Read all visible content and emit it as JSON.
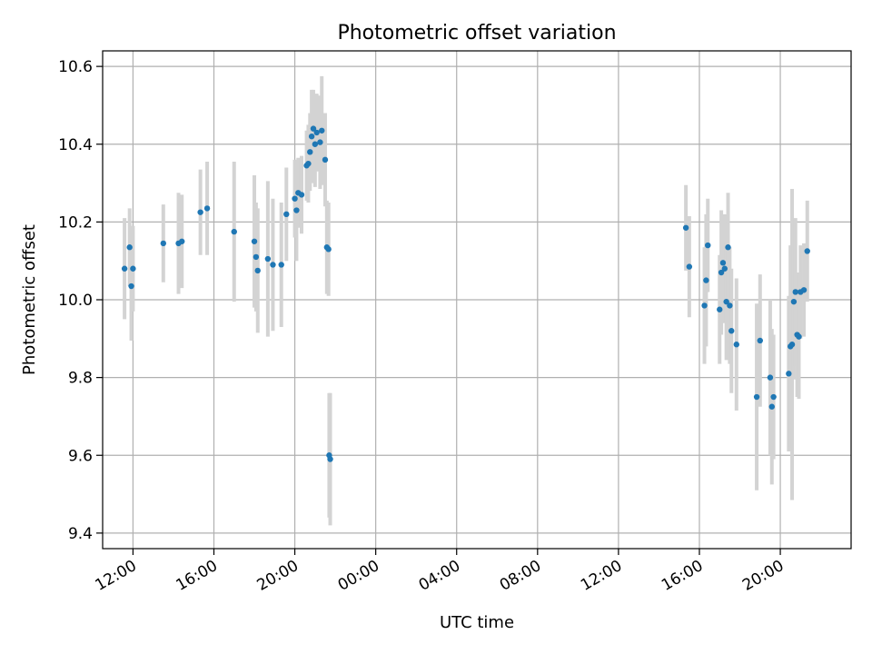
{
  "chart_data": {
    "type": "scatter",
    "title": "Photometric offset variation",
    "xlabel": "UTC time",
    "ylabel": "Photometric offset",
    "xlim": [
      "10:30 (day 1)",
      "23:30 (day 2)"
    ],
    "ylim": [
      9.36,
      10.64
    ],
    "grid": true,
    "xticks": [
      "12:00",
      "16:00",
      "20:00",
      "00:00",
      "04:00",
      "08:00",
      "12:00",
      "16:00",
      "20:00"
    ],
    "yticks": [
      "9.4",
      "9.6",
      "9.8",
      "10.0",
      "10.2",
      "10.4",
      "10.6"
    ],
    "colors": {
      "points": "#1f77b4",
      "errorbars": "#d3d3d3",
      "grid": "#b0b0b0"
    },
    "points": [
      {
        "t": "11:35",
        "y": 10.08,
        "err": 0.13
      },
      {
        "t": "11:50",
        "y": 10.135,
        "err": 0.1
      },
      {
        "t": "11:55",
        "y": 10.035,
        "err": 0.14
      },
      {
        "t": "12:00",
        "y": 10.08,
        "err": 0.11
      },
      {
        "t": "13:30",
        "y": 10.145,
        "err": 0.1
      },
      {
        "t": "14:15",
        "y": 10.145,
        "err": 0.13
      },
      {
        "t": "14:25",
        "y": 10.15,
        "err": 0.12
      },
      {
        "t": "15:20",
        "y": 10.225,
        "err": 0.11
      },
      {
        "t": "15:40",
        "y": 10.235,
        "err": 0.12
      },
      {
        "t": "17:00",
        "y": 10.175,
        "err": 0.18
      },
      {
        "t": "18:00",
        "y": 10.15,
        "err": 0.17
      },
      {
        "t": "18:05",
        "y": 10.11,
        "err": 0.14
      },
      {
        "t": "18:10",
        "y": 10.075,
        "err": 0.16
      },
      {
        "t": "18:40",
        "y": 10.105,
        "err": 0.2
      },
      {
        "t": "18:55",
        "y": 10.09,
        "err": 0.17
      },
      {
        "t": "19:20",
        "y": 10.09,
        "err": 0.16
      },
      {
        "t": "19:35",
        "y": 10.22,
        "err": 0.12
      },
      {
        "t": "20:00",
        "y": 10.26,
        "err": 0.1
      },
      {
        "t": "20:05",
        "y": 10.23,
        "err": 0.13
      },
      {
        "t": "20:10",
        "y": 10.275,
        "err": 0.09
      },
      {
        "t": "20:20",
        "y": 10.27,
        "err": 0.1
      },
      {
        "t": "20:35",
        "y": 10.345,
        "err": 0.09
      },
      {
        "t": "20:40",
        "y": 10.35,
        "err": 0.1
      },
      {
        "t": "20:45",
        "y": 10.38,
        "err": 0.1
      },
      {
        "t": "20:50",
        "y": 10.42,
        "err": 0.12
      },
      {
        "t": "20:55",
        "y": 10.44,
        "err": 0.1
      },
      {
        "t": "21:00",
        "y": 10.4,
        "err": 0.11
      },
      {
        "t": "21:05",
        "y": 10.43,
        "err": 0.1
      },
      {
        "t": "21:15",
        "y": 10.405,
        "err": 0.12
      },
      {
        "t": "21:20",
        "y": 10.435,
        "err": 0.14
      },
      {
        "t": "21:30",
        "y": 10.36,
        "err": 0.12
      },
      {
        "t": "21:35",
        "y": 10.135,
        "err": 0.12
      },
      {
        "t": "21:40",
        "y": 10.13,
        "err": 0.12
      },
      {
        "t": "21:42",
        "y": 9.6,
        "err": 0.16
      },
      {
        "t": "21:45",
        "y": 9.59,
        "err": 0.17
      },
      {
        "t": "15:20 (day 2)",
        "y": 10.185,
        "err": 0.11
      },
      {
        "t": "15:30 (day 2)",
        "y": 10.085,
        "err": 0.13
      },
      {
        "t": "16:15 (day 2)",
        "y": 9.985,
        "err": 0.15
      },
      {
        "t": "16:20 (day 2)",
        "y": 10.05,
        "err": 0.17
      },
      {
        "t": "16:25 (day 2)",
        "y": 10.14,
        "err": 0.12
      },
      {
        "t": "17:00 (day 2)",
        "y": 9.975,
        "err": 0.14
      },
      {
        "t": "17:05 (day 2)",
        "y": 10.07,
        "err": 0.16
      },
      {
        "t": "17:10 (day 2)",
        "y": 10.095,
        "err": 0.12
      },
      {
        "t": "17:15 (day 2)",
        "y": 10.08,
        "err": 0.14
      },
      {
        "t": "17:20 (day 2)",
        "y": 9.995,
        "err": 0.15
      },
      {
        "t": "17:25 (day 2)",
        "y": 10.135,
        "err": 0.14
      },
      {
        "t": "17:30 (day 2)",
        "y": 9.985,
        "err": 0.15
      },
      {
        "t": "17:35 (day 2)",
        "y": 9.92,
        "err": 0.16
      },
      {
        "t": "17:50 (day 2)",
        "y": 9.885,
        "err": 0.17
      },
      {
        "t": "18:50 (day 2)",
        "y": 9.75,
        "err": 0.24
      },
      {
        "t": "19:00 (day 2)",
        "y": 9.895,
        "err": 0.17
      },
      {
        "t": "19:30 (day 2)",
        "y": 9.8,
        "err": 0.2
      },
      {
        "t": "19:35 (day 2)",
        "y": 9.725,
        "err": 0.2
      },
      {
        "t": "19:40 (day 2)",
        "y": 9.75,
        "err": 0.16
      },
      {
        "t": "20:25 (day 2)",
        "y": 9.81,
        "err": 0.2
      },
      {
        "t": "20:30 (day 2)",
        "y": 9.88,
        "err": 0.26
      },
      {
        "t": "20:35 (day 2)",
        "y": 9.885,
        "err": 0.4
      },
      {
        "t": "20:40 (day 2)",
        "y": 9.995,
        "err": 0.2
      },
      {
        "t": "20:45 (day 2)",
        "y": 10.02,
        "err": 0.19
      },
      {
        "t": "20:50 (day 2)",
        "y": 9.91,
        "err": 0.16
      },
      {
        "t": "20:55 (day 2)",
        "y": 9.905,
        "err": 0.16
      },
      {
        "t": "21:00 (day 2)",
        "y": 10.02,
        "err": 0.12
      },
      {
        "t": "21:10 (day 2)",
        "y": 10.025,
        "err": 0.12
      },
      {
        "t": "21:20 (day 2)",
        "y": 10.125,
        "err": 0.13
      }
    ]
  }
}
